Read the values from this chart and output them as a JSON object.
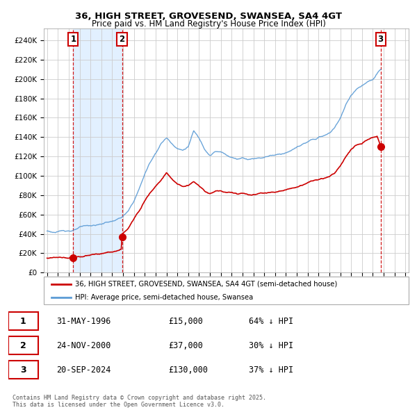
{
  "title1": "36, HIGH STREET, GROVESEND, SWANSEA, SA4 4GT",
  "title2": "Price paid vs. HM Land Registry's House Price Index (HPI)",
  "xlim_start": 1993.7,
  "xlim_end": 2027.3,
  "ylim_min": 0,
  "ylim_max": 252000,
  "yticks": [
    0,
    20000,
    40000,
    60000,
    80000,
    100000,
    120000,
    140000,
    160000,
    180000,
    200000,
    220000,
    240000
  ],
  "ytick_labels": [
    "£0",
    "£20K",
    "£40K",
    "£60K",
    "£80K",
    "£100K",
    "£120K",
    "£140K",
    "£160K",
    "£180K",
    "£200K",
    "£220K",
    "£240K"
  ],
  "sale_dates": [
    1996.41,
    2000.9,
    2024.72
  ],
  "sale_prices": [
    15000,
    37000,
    130000
  ],
  "sale_labels": [
    "1",
    "2",
    "3"
  ],
  "hpi_color": "#5b9bd5",
  "price_color": "#cc0000",
  "dashed_color": "#cc0000",
  "fill_color": "#ddeeff",
  "grid_color": "#cccccc",
  "legend_line1": "36, HIGH STREET, GROVESEND, SWANSEA, SA4 4GT (semi-detached house)",
  "legend_line2": "HPI: Average price, semi-detached house, Swansea",
  "table_data": [
    [
      "1",
      "31-MAY-1996",
      "£15,000",
      "64% ↓ HPI"
    ],
    [
      "2",
      "24-NOV-2000",
      "£37,000",
      "30% ↓ HPI"
    ],
    [
      "3",
      "20-SEP-2024",
      "£130,000",
      "37% ↓ HPI"
    ]
  ],
  "footnote": "Contains HM Land Registry data © Crown copyright and database right 2025.\nThis data is licensed under the Open Government Licence v3.0.",
  "hpi_anchors": [
    [
      1994.0,
      43000
    ],
    [
      1994.5,
      42000
    ],
    [
      1995.0,
      41500
    ],
    [
      1995.5,
      43000
    ],
    [
      1996.0,
      43500
    ],
    [
      1996.5,
      44000
    ],
    [
      1997.0,
      46000
    ],
    [
      1997.5,
      47000
    ],
    [
      1998.0,
      47500
    ],
    [
      1998.5,
      48000
    ],
    [
      1999.0,
      49000
    ],
    [
      1999.5,
      51000
    ],
    [
      2000.0,
      52000
    ],
    [
      2000.5,
      54000
    ],
    [
      2001.0,
      57000
    ],
    [
      2001.5,
      62000
    ],
    [
      2002.0,
      72000
    ],
    [
      2002.5,
      85000
    ],
    [
      2003.0,
      100000
    ],
    [
      2003.5,
      112000
    ],
    [
      2004.0,
      122000
    ],
    [
      2004.5,
      132000
    ],
    [
      2005.0,
      138000
    ],
    [
      2005.5,
      132000
    ],
    [
      2006.0,
      128000
    ],
    [
      2006.5,
      126000
    ],
    [
      2007.0,
      130000
    ],
    [
      2007.5,
      146000
    ],
    [
      2008.0,
      138000
    ],
    [
      2008.5,
      128000
    ],
    [
      2009.0,
      122000
    ],
    [
      2009.5,
      126000
    ],
    [
      2010.0,
      125000
    ],
    [
      2010.5,
      122000
    ],
    [
      2011.0,
      120000
    ],
    [
      2011.5,
      118000
    ],
    [
      2012.0,
      120000
    ],
    [
      2012.5,
      119000
    ],
    [
      2013.0,
      120000
    ],
    [
      2013.5,
      121000
    ],
    [
      2014.0,
      122000
    ],
    [
      2014.5,
      124000
    ],
    [
      2015.0,
      125000
    ],
    [
      2015.5,
      126000
    ],
    [
      2016.0,
      128000
    ],
    [
      2016.5,
      130000
    ],
    [
      2017.0,
      133000
    ],
    [
      2017.5,
      136000
    ],
    [
      2018.0,
      138000
    ],
    [
      2018.5,
      140000
    ],
    [
      2019.0,
      142000
    ],
    [
      2019.5,
      144000
    ],
    [
      2020.0,
      146000
    ],
    [
      2020.5,
      152000
    ],
    [
      2021.0,
      162000
    ],
    [
      2021.5,
      175000
    ],
    [
      2022.0,
      185000
    ],
    [
      2022.5,
      192000
    ],
    [
      2023.0,
      195000
    ],
    [
      2023.5,
      198000
    ],
    [
      2024.0,
      200000
    ],
    [
      2024.5,
      207000
    ],
    [
      2024.72,
      210000
    ]
  ],
  "price_anchors": [
    [
      1994.0,
      15000
    ],
    [
      1996.4,
      15000
    ],
    [
      1996.41,
      15000
    ],
    [
      1996.5,
      16000
    ],
    [
      1997.0,
      16500
    ],
    [
      1997.5,
      17000
    ],
    [
      1998.0,
      17500
    ],
    [
      1998.5,
      18000
    ],
    [
      1999.0,
      18500
    ],
    [
      1999.5,
      19000
    ],
    [
      2000.0,
      19500
    ],
    [
      2000.85,
      21000
    ],
    [
      2000.9,
      37000
    ],
    [
      2001.0,
      38000
    ],
    [
      2001.5,
      43000
    ],
    [
      2002.0,
      52000
    ],
    [
      2002.5,
      62000
    ],
    [
      2003.0,
      73000
    ],
    [
      2003.5,
      82000
    ],
    [
      2004.0,
      89000
    ],
    [
      2004.5,
      96000
    ],
    [
      2005.0,
      103000
    ],
    [
      2005.5,
      97000
    ],
    [
      2006.0,
      92000
    ],
    [
      2006.5,
      89000
    ],
    [
      2007.0,
      90000
    ],
    [
      2007.5,
      95000
    ],
    [
      2008.0,
      90000
    ],
    [
      2008.5,
      85000
    ],
    [
      2009.0,
      82000
    ],
    [
      2009.5,
      84000
    ],
    [
      2010.0,
      85000
    ],
    [
      2010.5,
      83000
    ],
    [
      2011.0,
      83000
    ],
    [
      2011.5,
      82000
    ],
    [
      2012.0,
      83000
    ],
    [
      2012.5,
      82000
    ],
    [
      2013.0,
      82000
    ],
    [
      2013.5,
      83000
    ],
    [
      2014.0,
      84000
    ],
    [
      2014.5,
      85000
    ],
    [
      2015.0,
      86000
    ],
    [
      2015.5,
      87000
    ],
    [
      2016.0,
      88000
    ],
    [
      2016.5,
      89000
    ],
    [
      2017.0,
      91000
    ],
    [
      2017.5,
      93000
    ],
    [
      2018.0,
      95000
    ],
    [
      2018.5,
      97000
    ],
    [
      2019.0,
      98000
    ],
    [
      2019.5,
      99000
    ],
    [
      2020.0,
      100000
    ],
    [
      2020.5,
      104000
    ],
    [
      2021.0,
      111000
    ],
    [
      2021.5,
      120000
    ],
    [
      2022.0,
      128000
    ],
    [
      2022.5,
      132000
    ],
    [
      2023.0,
      133000
    ],
    [
      2023.5,
      137000
    ],
    [
      2024.0,
      140000
    ],
    [
      2024.4,
      141000
    ],
    [
      2024.72,
      130000
    ]
  ]
}
